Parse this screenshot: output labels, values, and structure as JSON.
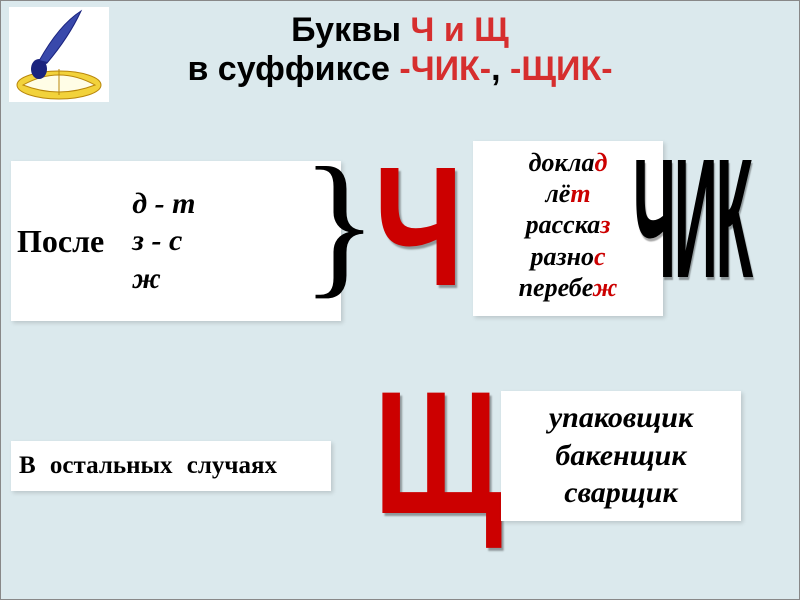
{
  "title": {
    "line1_a": "Буквы  ",
    "line1_b": "Ч и Щ",
    "line2_a": "в суффиксе ",
    "line2_b": "-ЧИК-",
    "line2_c": ", ",
    "line2_d": "-ЩИК-"
  },
  "card_after": {
    "label": "После",
    "pairs": {
      "r1a": "д",
      "r1b": "т",
      "r2a": "з",
      "r2b": "с",
      "r3a": "ж"
    },
    "dash": " - "
  },
  "brace": "}",
  "big_ch": "Ч",
  "big_chik": "ЧИК",
  "big_shch": "Щ",
  "words1": [
    {
      "stem": "докла",
      "end": "д",
      "color": "#cc0000"
    },
    {
      "stem": "лё",
      "end": "т",
      "color": "#cc0000"
    },
    {
      "stem": "расска",
      "end": "з",
      "color": "#cc0000"
    },
    {
      "stem": "разно",
      "end": "с",
      "color": "#cc0000"
    },
    {
      "stem": "перебе",
      "end": "ж",
      "color": "#cc0000"
    }
  ],
  "card_other": "В   остальных   случаях",
  "words2": [
    "упаковщик",
    "бакенщик",
    "сварщик"
  ],
  "colors": {
    "bg": "#dbe9ed",
    "card_bg": "#ffffff",
    "title_red": "#d62e2e",
    "accent_red": "#cc0000",
    "text": "#000000"
  }
}
